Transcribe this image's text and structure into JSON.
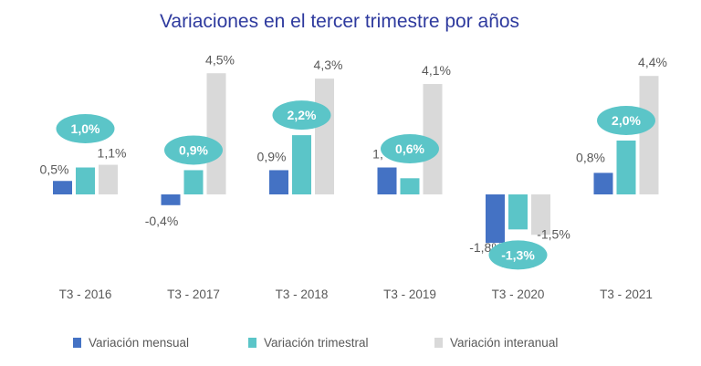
{
  "chart_data": {
    "type": "bar",
    "title": "Variaciones en el tercer trimestre por años",
    "categories": [
      "T3 - 2016",
      "T3 - 2017",
      "T3 - 2018",
      "T3 - 2019",
      "T3 - 2020",
      "T3 - 2021"
    ],
    "series": [
      {
        "name": "Variación mensual",
        "values": [
          0.5,
          -0.4,
          0.9,
          1.0,
          -1.8,
          0.8
        ],
        "labels": [
          "0,5%",
          "-0,4%",
          "0,9%",
          "1,",
          "-1,8%",
          "0,8%"
        ],
        "color": "#4472C4"
      },
      {
        "name": "Variación trimestral",
        "values": [
          1.0,
          0.9,
          2.2,
          0.6,
          -1.3,
          2.0
        ],
        "labels": [
          "1,0%",
          "0,9%",
          "2,2%",
          "0,6%",
          "-1,3%",
          "2,0%"
        ],
        "color": "#5BC5C8"
      },
      {
        "name": "Variación interanual",
        "values": [
          1.1,
          4.5,
          4.3,
          4.1,
          -1.5,
          4.4
        ],
        "labels": [
          "1,1%",
          "4,5%",
          "4,3%",
          "4,1%",
          "-1,5%",
          "4,4%"
        ],
        "color": "#D9D9D9"
      }
    ],
    "ylim": [
      -2.2,
      5.0
    ],
    "grid": false,
    "legend_position": "bottom",
    "highlight_series": "Variación trimestral",
    "colors": {
      "title": "#2E3A9E",
      "bubble": "#5BC5C8",
      "text": "#595959"
    }
  }
}
